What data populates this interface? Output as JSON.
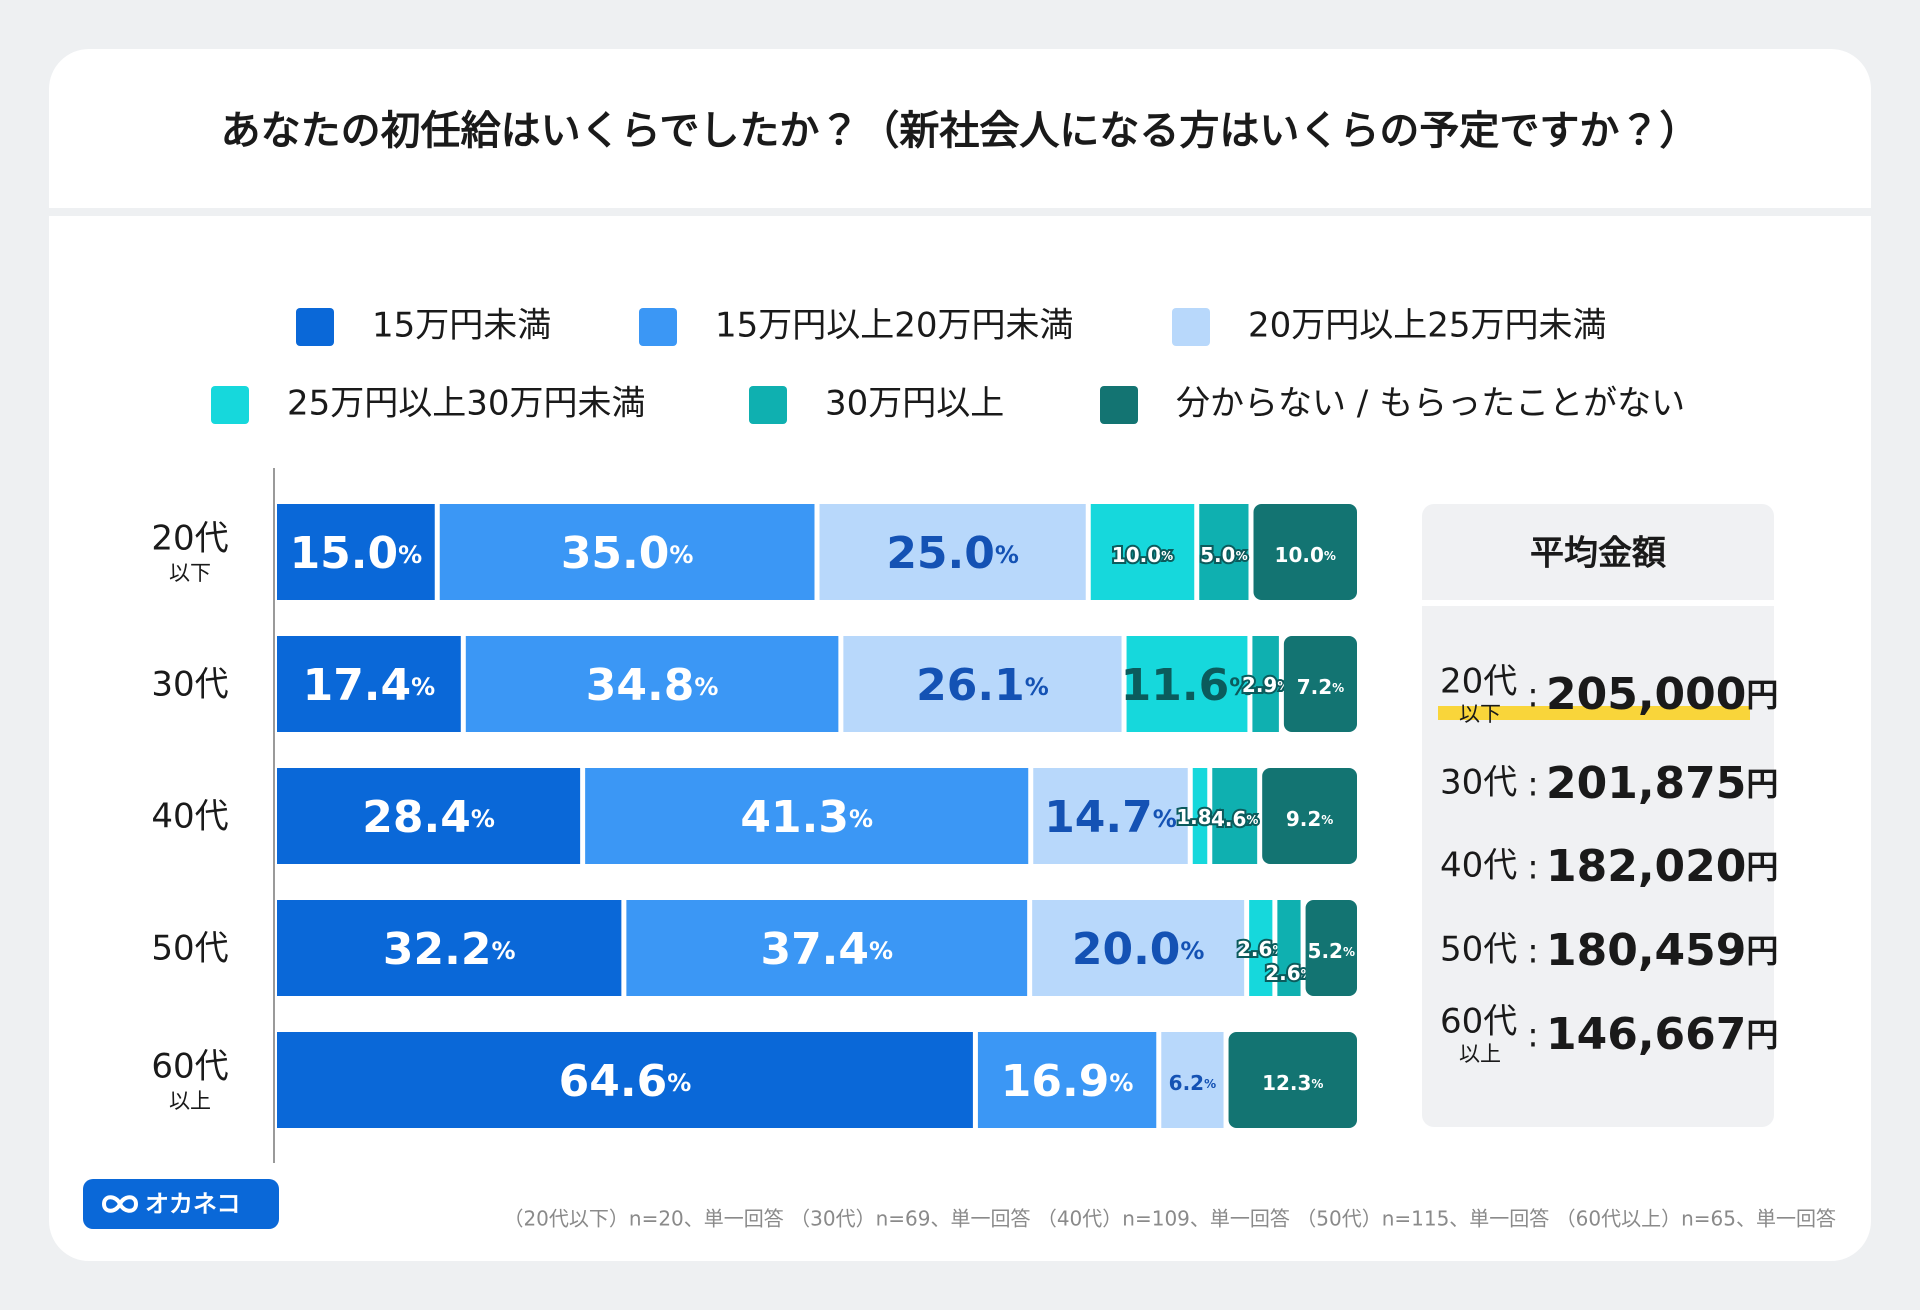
{
  "chart_data": {
    "type": "stacked-bar-horizontal",
    "title": "あなたの初任給はいくらでしたか？（新社会人になる方はいくらの予定ですか？）",
    "categories": [
      "20代",
      "30代",
      "40代",
      "50代",
      "60代"
    ],
    "category_notes": [
      "以下",
      null,
      null,
      null,
      "以上"
    ],
    "value_unit": "%",
    "series": [
      {
        "name": "15万円未満",
        "color": "#0a68d8",
        "values": [
          15,
          17.4,
          28.4,
          32.2,
          64.6
        ],
        "value_labels": [
          "15.0",
          "17.4",
          "28.4",
          "32.2",
          "64.6"
        ]
      },
      {
        "name": "15万円以上20万円未満",
        "color": "#3b97f5",
        "values": [
          35,
          34.8,
          41.3,
          37.4,
          16.9
        ],
        "value_labels": [
          "35.0",
          "34.8",
          "41.3",
          "37.4",
          "16.9"
        ]
      },
      {
        "name": "20万円以上25万円未満",
        "color": "#b8d8fb",
        "values": [
          25,
          26.1,
          14.7,
          20,
          6.2
        ],
        "value_labels": [
          "25.0",
          "26.1",
          "14.7",
          "20.0",
          "6.2"
        ]
      },
      {
        "name": "25万円以上30万円未満",
        "color": "#16d8dc",
        "values": [
          10,
          11.6,
          1.8,
          2.6,
          null
        ],
        "value_labels": [
          "10.0",
          "11.6",
          "1.8",
          "2.6",
          null
        ]
      },
      {
        "name": "30万円以上",
        "color": "#0fb0b0",
        "values": [
          5,
          2.9,
          4.6,
          2.6,
          null
        ],
        "value_labels": [
          "5.0",
          "2.9",
          "4.6",
          "2.6",
          null
        ]
      },
      {
        "name": "分からない / もらったことがない",
        "color": "#137472",
        "values": [
          10,
          7.2,
          9.2,
          5.2,
          12.3
        ],
        "value_labels": [
          "10.0",
          "7.2",
          "9.2",
          "5.2",
          "12.3"
        ]
      }
    ]
  },
  "averages": {
    "title": "平均金額",
    "separator": ":",
    "unit": "円",
    "rows": [
      {
        "age": "20代",
        "note": "以下",
        "amount": "205,000"
      },
      {
        "age": "30代",
        "note": null,
        "amount": "201,875"
      },
      {
        "age": "40代",
        "note": null,
        "amount": "182,020"
      },
      {
        "age": "50代",
        "note": null,
        "amount": "180,459"
      },
      {
        "age": "60代",
        "note": "以上",
        "amount": "146,667"
      }
    ]
  },
  "footnote": "（20代以下）n=20、単一回答 （30代）n=69、単一回答 （40代）n=109、単一回答 （50代）n=115、単一回答 （60代以上）n=65、単一回答",
  "logo": "オカネコ"
}
